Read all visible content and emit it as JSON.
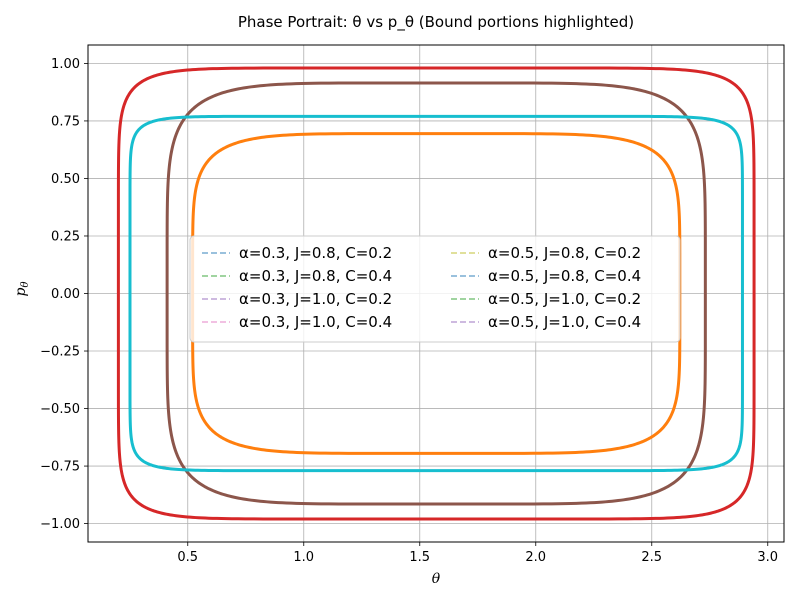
{
  "chart_data": {
    "type": "line",
    "title": "Phase Portrait: θ vs p_θ (Bound portions highlighted)",
    "xlabel": "θ",
    "ylabel": "p",
    "ylabel_sub": "θ",
    "xlim": [
      0.07,
      3.07
    ],
    "ylim": [
      -1.08,
      1.08
    ],
    "xticks": [
      0.5,
      1.0,
      1.5,
      2.0,
      2.5,
      3.0
    ],
    "xtick_labels": [
      "0.5",
      "1.0",
      "1.5",
      "2.0",
      "2.5",
      "3.0"
    ],
    "yticks": [
      -1.0,
      -0.75,
      -0.5,
      -0.25,
      0.0,
      0.25,
      0.5,
      0.75,
      1.0
    ],
    "ytick_labels": [
      "−1.00",
      "−0.75",
      "−0.50",
      "−0.25",
      "0.00",
      "0.25",
      "0.50",
      "0.75",
      "1.00"
    ],
    "grid": true,
    "legend_placement": "center",
    "legend": [
      {
        "label": "α=0.3, J=0.8, C=0.2",
        "color": "#1f77b4"
      },
      {
        "label": "α=0.3, J=0.8, C=0.4",
        "color": "#2ca02c"
      },
      {
        "label": "α=0.3, J=1.0, C=0.2",
        "color": "#9467bd"
      },
      {
        "label": "α=0.3, J=1.0, C=0.4",
        "color": "#e377c2"
      },
      {
        "label": "α=0.5, J=0.8, C=0.2",
        "color": "#bcbd22"
      },
      {
        "label": "α=0.5, J=0.8, C=0.4",
        "color": "#1f77b4"
      },
      {
        "label": "α=0.5, J=1.0, C=0.2",
        "color": "#2ca02c"
      },
      {
        "label": "α=0.5, J=1.0, C=0.4",
        "color": "#9467bd"
      }
    ],
    "series": [
      {
        "color": "#d62728",
        "center": 1.571,
        "a": 1.37,
        "b": 0.98,
        "n": 10
      },
      {
        "color": "#8c564b",
        "center": 1.571,
        "a": 1.16,
        "b": 0.915,
        "n": 6
      },
      {
        "color": "#17becf",
        "center": 1.571,
        "a": 1.32,
        "b": 0.77,
        "n": 14
      },
      {
        "color": "#ff7f0e",
        "center": 1.571,
        "a": 1.05,
        "b": 0.695,
        "n": 6
      }
    ]
  }
}
